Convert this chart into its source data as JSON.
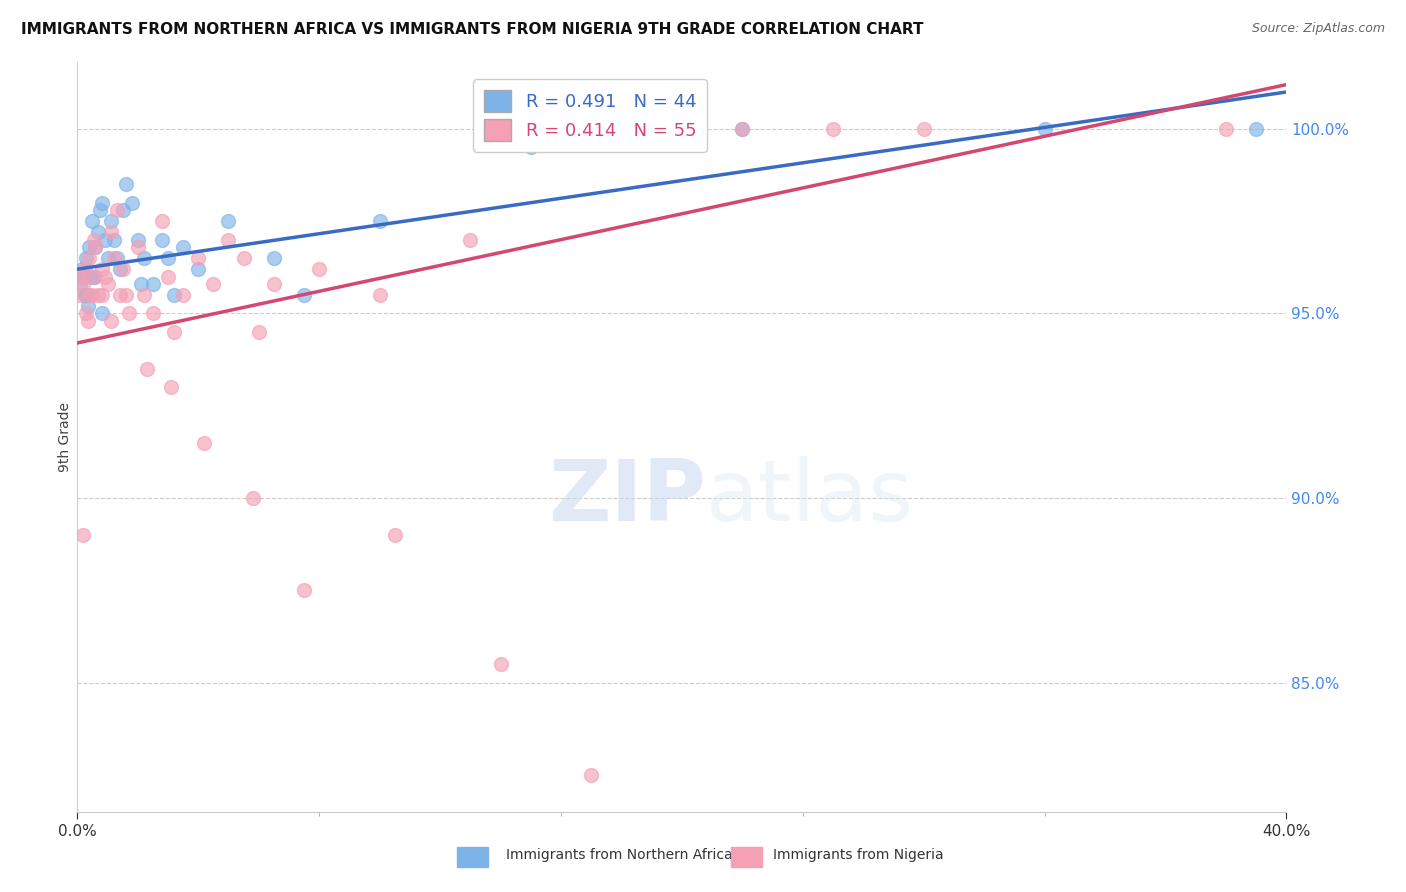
{
  "title": "IMMIGRANTS FROM NORTHERN AFRICA VS IMMIGRANTS FROM NIGERIA 9TH GRADE CORRELATION CHART",
  "source": "Source: ZipAtlas.com",
  "ylabel": "9th Grade",
  "right_yticks": [
    85.0,
    90.0,
    95.0,
    100.0
  ],
  "xlim": [
    0,
    40
  ],
  "ylim": [
    81.5,
    101.8
  ],
  "blue_R": 0.491,
  "blue_N": 44,
  "pink_R": 0.414,
  "pink_N": 55,
  "blue_color": "#7EB3E8",
  "pink_color": "#F4A0B5",
  "blue_line_color": "#3A6BC4",
  "pink_line_color": "#D44870",
  "watermark_zip": "ZIP",
  "watermark_atlas": "atlas",
  "legend_label_blue": "Immigrants from Northern Africa",
  "legend_label_pink": "Immigrants from Nigeria",
  "blue_points_x": [
    0.1,
    0.15,
    0.2,
    0.25,
    0.3,
    0.35,
    0.4,
    0.5,
    0.55,
    0.6,
    0.7,
    0.75,
    0.8,
    0.9,
    1.0,
    1.1,
    1.2,
    1.3,
    1.5,
    1.6,
    1.8,
    2.0,
    2.2,
    2.5,
    2.8,
    3.0,
    3.5,
    4.0,
    5.0,
    6.5,
    7.5,
    10.0,
    15.0,
    17.0,
    20.0,
    22.0,
    32.0,
    39.0,
    0.3,
    0.5,
    0.8,
    1.4,
    2.1,
    3.2
  ],
  "blue_points_y": [
    95.8,
    96.2,
    96.0,
    95.5,
    96.5,
    95.2,
    96.8,
    97.5,
    96.0,
    96.8,
    97.2,
    97.8,
    98.0,
    97.0,
    96.5,
    97.5,
    97.0,
    96.5,
    97.8,
    98.5,
    98.0,
    97.0,
    96.5,
    95.8,
    97.0,
    96.5,
    96.8,
    96.2,
    97.5,
    96.5,
    95.5,
    97.5,
    99.5,
    99.8,
    100.0,
    100.0,
    100.0,
    100.0,
    95.5,
    96.0,
    95.0,
    96.2,
    95.8,
    95.5
  ],
  "pink_points_x": [
    0.1,
    0.15,
    0.2,
    0.25,
    0.3,
    0.35,
    0.4,
    0.5,
    0.55,
    0.6,
    0.7,
    0.8,
    0.9,
    1.0,
    1.1,
    1.2,
    1.3,
    1.4,
    1.5,
    1.7,
    2.0,
    2.2,
    2.5,
    2.8,
    3.0,
    3.2,
    3.5,
    4.0,
    4.5,
    5.0,
    5.5,
    6.0,
    6.5,
    8.0,
    10.0,
    13.0,
    0.2,
    0.4,
    0.6,
    0.8,
    1.1,
    1.6,
    2.3,
    3.1,
    4.2,
    5.8,
    7.5,
    10.5,
    14.0,
    17.0,
    20.0,
    22.0,
    25.0,
    28.0,
    38.0
  ],
  "pink_points_y": [
    95.5,
    96.0,
    95.8,
    96.2,
    95.0,
    94.8,
    96.5,
    95.5,
    97.0,
    96.8,
    95.5,
    96.2,
    96.0,
    95.8,
    97.2,
    96.5,
    97.8,
    95.5,
    96.2,
    95.0,
    96.8,
    95.5,
    95.0,
    97.5,
    96.0,
    94.5,
    95.5,
    96.5,
    95.8,
    97.0,
    96.5,
    94.5,
    95.8,
    96.2,
    95.5,
    97.0,
    89.0,
    95.5,
    96.0,
    95.5,
    94.8,
    95.5,
    93.5,
    93.0,
    91.5,
    90.0,
    87.5,
    89.0,
    85.5,
    82.5,
    100.0,
    100.0,
    100.0,
    100.0,
    100.0
  ],
  "blue_trendline_y_at_0": 96.2,
  "blue_trendline_y_at_40": 101.0,
  "pink_trendline_y_at_0": 94.2,
  "pink_trendline_y_at_40": 101.2
}
